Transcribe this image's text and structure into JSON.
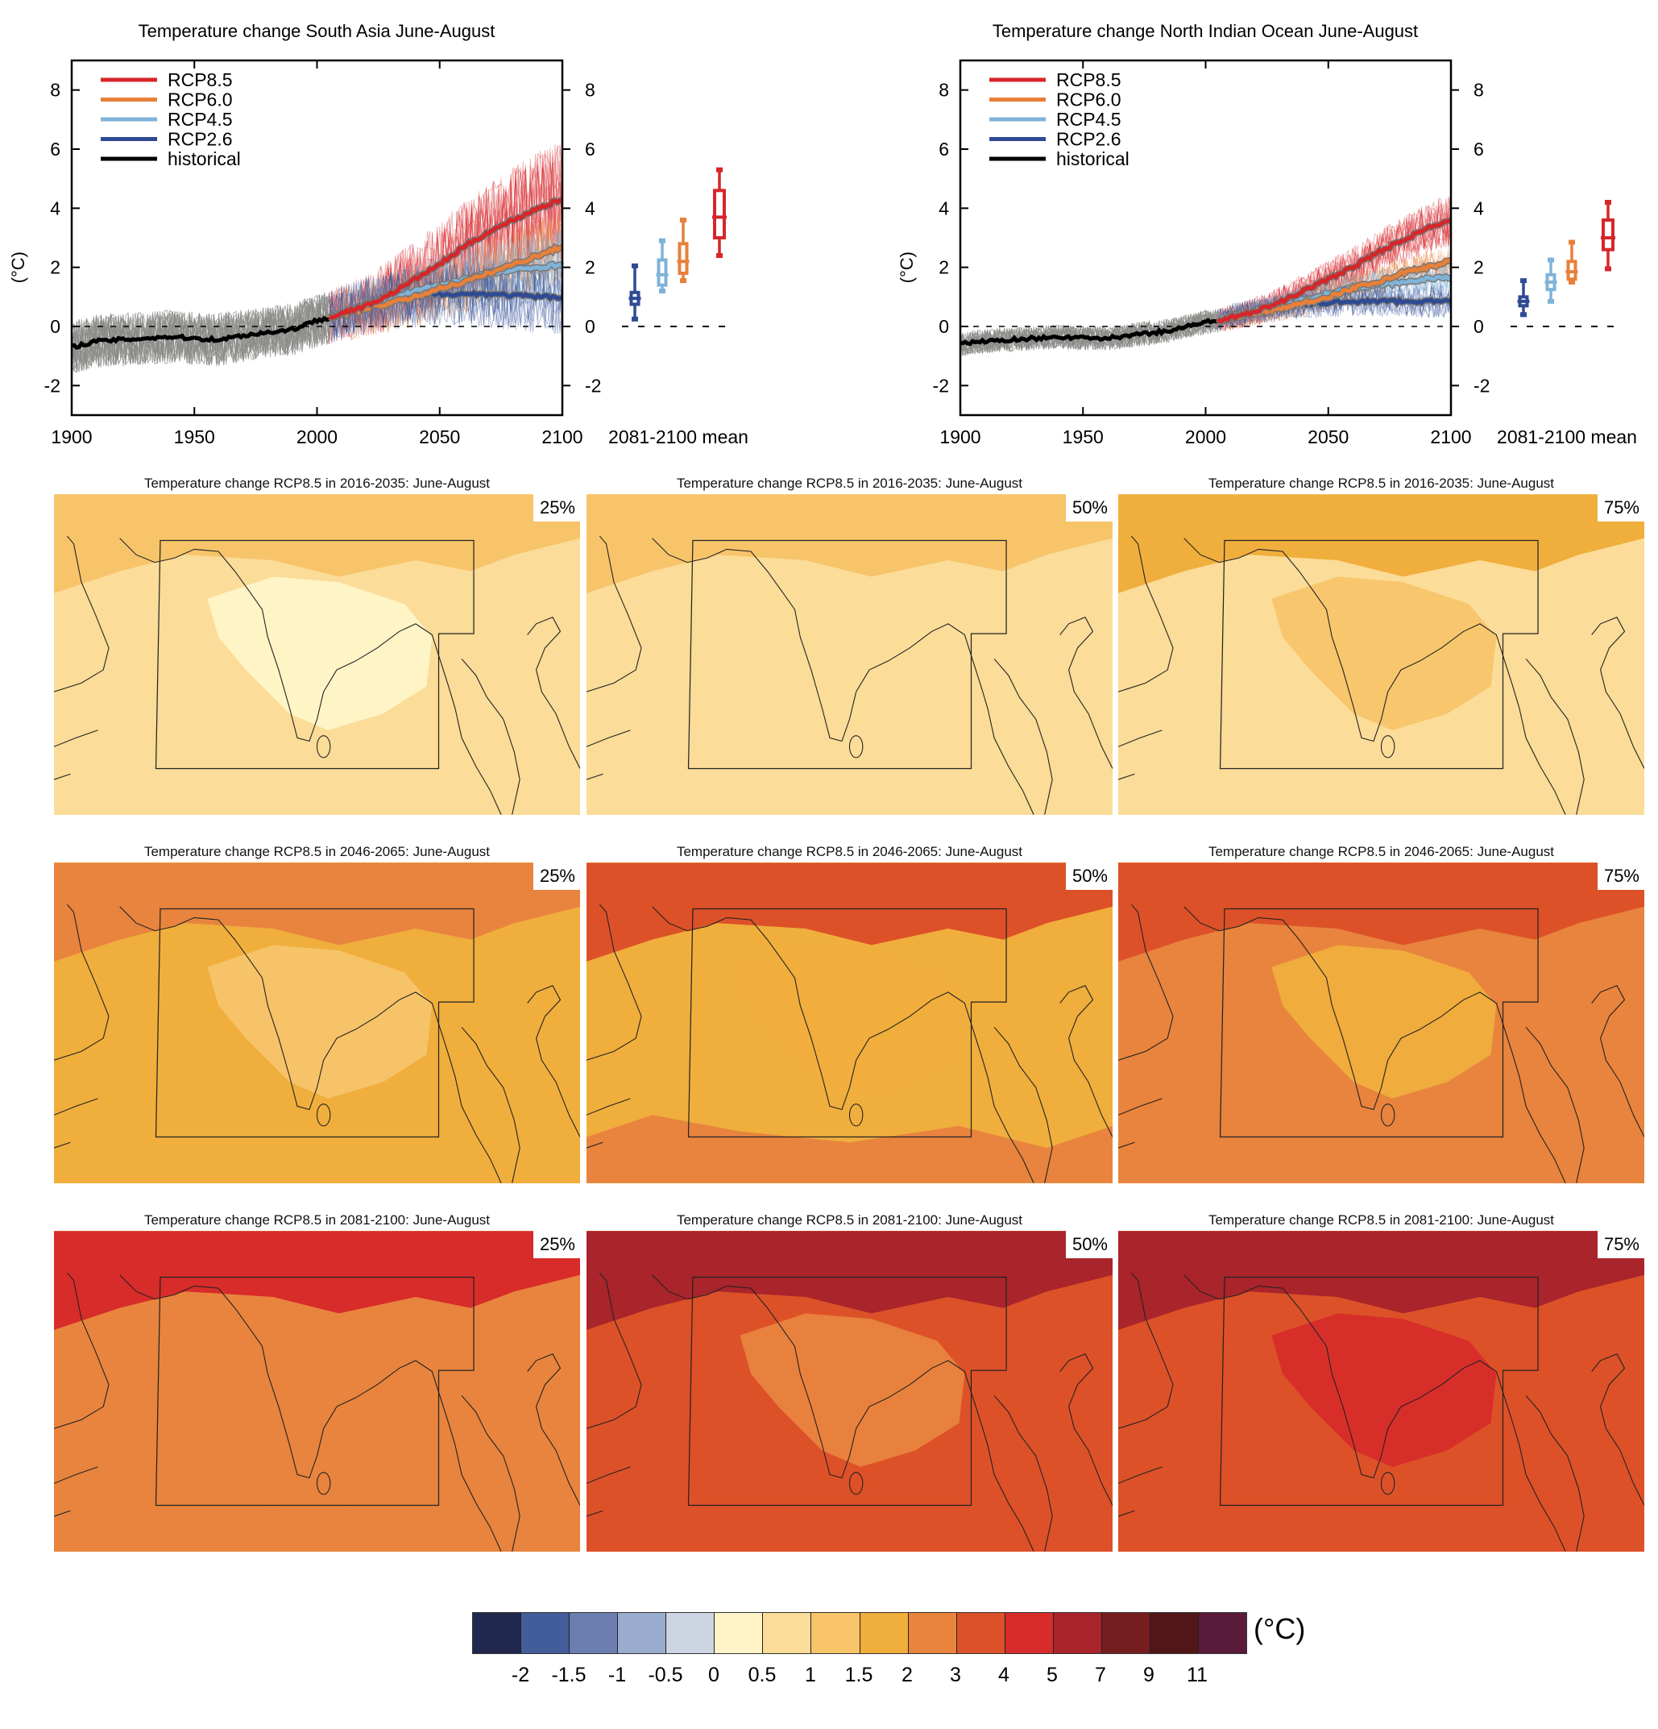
{
  "chart_data": [
    {
      "type": "line",
      "title": "Temperature change South Asia June-August",
      "ylabel": "(°C)",
      "xlim": [
        1900,
        2100
      ],
      "ylim": [
        -3,
        9
      ],
      "x_ticks": [
        1900,
        1950,
        2000,
        2050,
        2100
      ],
      "y_ticks": [
        8,
        6,
        4,
        2,
        0,
        -2
      ],
      "legend_position": "top-left",
      "boxplot_label": "2081-2100 mean",
      "series": [
        {
          "name": "RCP8.5",
          "color": "#d7262a",
          "x": [
            2005,
            2010,
            2020,
            2030,
            2040,
            2050,
            2060,
            2070,
            2080,
            2090,
            2100
          ],
          "values": [
            0.3,
            0.45,
            0.7,
            1.1,
            1.6,
            2.1,
            2.7,
            3.2,
            3.6,
            4.0,
            4.3
          ]
        },
        {
          "name": "RCP6.0",
          "color": "#e8803a",
          "x": [
            2005,
            2010,
            2020,
            2030,
            2040,
            2050,
            2060,
            2070,
            2080,
            2090,
            2100
          ],
          "values": [
            0.3,
            0.4,
            0.6,
            0.8,
            1.0,
            1.3,
            1.5,
            1.8,
            2.1,
            2.4,
            2.7
          ]
        },
        {
          "name": "RCP4.5",
          "color": "#7fb3d8",
          "x": [
            2005,
            2010,
            2020,
            2030,
            2040,
            2050,
            2060,
            2070,
            2080,
            2090,
            2100
          ],
          "values": [
            0.3,
            0.45,
            0.7,
            0.9,
            1.2,
            1.4,
            1.6,
            1.8,
            1.9,
            2.0,
            2.1
          ]
        },
        {
          "name": "RCP2.6",
          "color": "#2f4a94",
          "x": [
            2005,
            2010,
            2020,
            2030,
            2040,
            2050,
            2060,
            2070,
            2080,
            2090,
            2100
          ],
          "values": [
            0.3,
            0.45,
            0.7,
            0.9,
            1.0,
            1.1,
            1.1,
            1.1,
            1.05,
            1.0,
            1.0
          ]
        },
        {
          "name": "historical",
          "color": "#000000",
          "x": [
            1900,
            1910,
            1920,
            1930,
            1940,
            1950,
            1960,
            1970,
            1980,
            1990,
            2000,
            2005
          ],
          "values": [
            -0.7,
            -0.5,
            -0.45,
            -0.4,
            -0.35,
            -0.4,
            -0.45,
            -0.3,
            -0.2,
            -0.1,
            0.2,
            0.3
          ]
        }
      ],
      "boxplots": [
        {
          "name": "RCP2.6",
          "color": "#2f4a94",
          "min": 0.25,
          "q1": 0.75,
          "median": 0.95,
          "q3": 1.15,
          "max": 2.05
        },
        {
          "name": "RCP4.5",
          "color": "#7fb3d8",
          "min": 1.2,
          "q1": 1.4,
          "median": 1.75,
          "q3": 2.25,
          "max": 2.9
        },
        {
          "name": "RCP6.0",
          "color": "#e8803a",
          "min": 1.55,
          "q1": 1.8,
          "median": 2.2,
          "q3": 2.8,
          "max": 3.6
        },
        {
          "name": "RCP8.5",
          "color": "#d7262a",
          "min": 2.4,
          "q1": 3.0,
          "median": 3.7,
          "q3": 4.6,
          "max": 5.3
        }
      ]
    },
    {
      "type": "line",
      "title": "Temperature change North Indian Ocean June-August",
      "ylabel": "(°C)",
      "xlim": [
        1900,
        2100
      ],
      "ylim": [
        -3,
        9
      ],
      "x_ticks": [
        1900,
        1950,
        2000,
        2050,
        2100
      ],
      "y_ticks": [
        8,
        6,
        4,
        2,
        0,
        -2
      ],
      "legend_position": "top-left",
      "boxplot_label": "2081-2100 mean",
      "series": [
        {
          "name": "RCP8.5",
          "color": "#d7262a",
          "x": [
            2005,
            2010,
            2020,
            2030,
            2040,
            2050,
            2060,
            2070,
            2080,
            2090,
            2100
          ],
          "values": [
            0.2,
            0.3,
            0.5,
            0.8,
            1.2,
            1.6,
            2.0,
            2.5,
            2.9,
            3.3,
            3.6
          ]
        },
        {
          "name": "RCP6.0",
          "color": "#e8803a",
          "x": [
            2005,
            2010,
            2020,
            2030,
            2040,
            2050,
            2060,
            2070,
            2080,
            2090,
            2100
          ],
          "values": [
            0.2,
            0.3,
            0.45,
            0.6,
            0.8,
            1.0,
            1.3,
            1.5,
            1.8,
            2.0,
            2.2
          ]
        },
        {
          "name": "RCP4.5",
          "color": "#7fb3d8",
          "x": [
            2005,
            2010,
            2020,
            2030,
            2040,
            2050,
            2060,
            2070,
            2080,
            2090,
            2100
          ],
          "values": [
            0.2,
            0.35,
            0.5,
            0.7,
            0.9,
            1.1,
            1.3,
            1.4,
            1.5,
            1.6,
            1.65
          ]
        },
        {
          "name": "RCP2.6",
          "color": "#2f4a94",
          "x": [
            2005,
            2010,
            2020,
            2030,
            2040,
            2050,
            2060,
            2070,
            2080,
            2090,
            2100
          ],
          "values": [
            0.2,
            0.35,
            0.5,
            0.65,
            0.75,
            0.8,
            0.85,
            0.85,
            0.85,
            0.85,
            0.85
          ]
        },
        {
          "name": "historical",
          "color": "#000000",
          "x": [
            1900,
            1910,
            1920,
            1930,
            1940,
            1950,
            1960,
            1970,
            1980,
            1990,
            2000,
            2005
          ],
          "values": [
            -0.6,
            -0.5,
            -0.45,
            -0.4,
            -0.35,
            -0.4,
            -0.4,
            -0.3,
            -0.2,
            -0.05,
            0.15,
            0.2
          ]
        }
      ],
      "boxplots": [
        {
          "name": "RCP2.6",
          "color": "#2f4a94",
          "min": 0.4,
          "q1": 0.7,
          "median": 0.85,
          "q3": 1.0,
          "max": 1.55
        },
        {
          "name": "RCP4.5",
          "color": "#7fb3d8",
          "min": 0.85,
          "q1": 1.25,
          "median": 1.5,
          "q3": 1.75,
          "max": 2.25
        },
        {
          "name": "RCP6.0",
          "color": "#e8803a",
          "min": 1.5,
          "q1": 1.6,
          "median": 1.85,
          "q3": 2.2,
          "max": 2.85
        },
        {
          "name": "RCP8.5",
          "color": "#d7262a",
          "min": 1.95,
          "q1": 2.6,
          "median": 3.0,
          "q3": 3.6,
          "max": 4.2
        }
      ]
    }
  ],
  "maps": [
    {
      "title": "Temperature change RCP8.5 in 2016-2035: June-August",
      "percentile": "25%",
      "bg": "#fbdc98",
      "north": "#f7c46a",
      "india": "#fff4c8",
      "ocean": "#fbdc98"
    },
    {
      "title": "Temperature change RCP8.5 in 2016-2035: June-August",
      "percentile": "50%",
      "bg": "#fbdc98",
      "north": "#f7c46a",
      "india": "#fbdc98",
      "ocean": "#fbdc98"
    },
    {
      "title": "Temperature change RCP8.5 in 2016-2035: June-August",
      "percentile": "75%",
      "bg": "#fbdc98",
      "north": "#f0ae3c",
      "india": "#f7c46a",
      "ocean": "#fbdc98"
    },
    {
      "title": "Temperature change RCP8.5 in 2046-2065: June-August",
      "percentile": "25%",
      "bg": "#f0ae3c",
      "north": "#e8843e",
      "india": "#f7c46a",
      "ocean": "#f0ae3c"
    },
    {
      "title": "Temperature change RCP8.5 in 2046-2065: June-August",
      "percentile": "50%",
      "bg": "#f0ae3c",
      "north": "#dd5128",
      "india": "#f0ae3c",
      "ocean": "#e8843e"
    },
    {
      "title": "Temperature change RCP8.5 in 2046-2065: June-August",
      "percentile": "75%",
      "bg": "#e8843e",
      "north": "#dd5128",
      "india": "#f0ae3c",
      "ocean": "#e8843e"
    },
    {
      "title": "Temperature change RCP8.5 in 2081-2100: June-August",
      "percentile": "25%",
      "bg": "#e8843e",
      "north": "#d72c2a",
      "india": "#e8843e",
      "ocean": "#e8843e"
    },
    {
      "title": "Temperature change RCP8.5 in 2081-2100: June-August",
      "percentile": "50%",
      "bg": "#dd5128",
      "north": "#a9242b",
      "india": "#e8843e",
      "ocean": "#dd5128"
    },
    {
      "title": "Temperature change RCP8.5 in 2081-2100: June-August",
      "percentile": "75%",
      "bg": "#dd5128",
      "north": "#a9242b",
      "india": "#d72c2a",
      "ocean": "#dd5128"
    }
  ],
  "colorbar": {
    "unit": "(°C)",
    "colors": [
      "#20284d",
      "#435d9b",
      "#6c7eaf",
      "#9aaccd",
      "#cdd5e2",
      "#fff4c8",
      "#fbdc98",
      "#f7c46a",
      "#f0ae3c",
      "#e8843e",
      "#dd5128",
      "#d72c2a",
      "#a9242b",
      "#761d20",
      "#521518",
      "#5a1a3a"
    ],
    "labels": [
      "-2",
      "-1.5",
      "-1",
      "-0.5",
      "0",
      "0.5",
      "1",
      "1.5",
      "2",
      "3",
      "4",
      "5",
      "7",
      "9",
      "11"
    ]
  }
}
